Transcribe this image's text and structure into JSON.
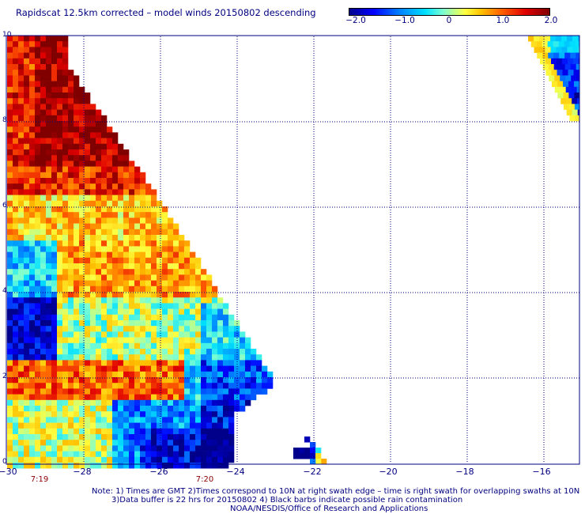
{
  "title": "Rapidscat 12.5km corrected – model winds 20150802 descending",
  "colorbar": {
    "labels": [
      "−2.0",
      "−1.0",
      "0",
      "1.0",
      "2.0"
    ],
    "min": -2.0,
    "max": 2.0
  },
  "map": {
    "lon_range": [
      -30,
      -15
    ],
    "lat_range": [
      0,
      10
    ],
    "x_ticks": [
      "−30",
      "−28",
      "−26",
      "−24",
      "−22",
      "−20",
      "−18",
      "−16"
    ],
    "y_ticks": [
      "0",
      "2",
      "4",
      "6",
      "8",
      "10"
    ],
    "gridlines": "dotted",
    "times": [
      "7:19",
      "7:20"
    ]
  },
  "notes": {
    "line1": "Note: 1) Times are GMT 2)Times correspond to 10N at right swath edge – time is right swath for overlapping swaths at 10N",
    "line2": "3)Data buffer is 22 hrs for 20150802 4) Black barbs indicate possible rain contamination",
    "line3": "NOAA/NESDIS/Office of Research and Applications"
  },
  "colors": {
    "text": "#000080",
    "time_text": "#8b0000",
    "grid": "#000080"
  }
}
